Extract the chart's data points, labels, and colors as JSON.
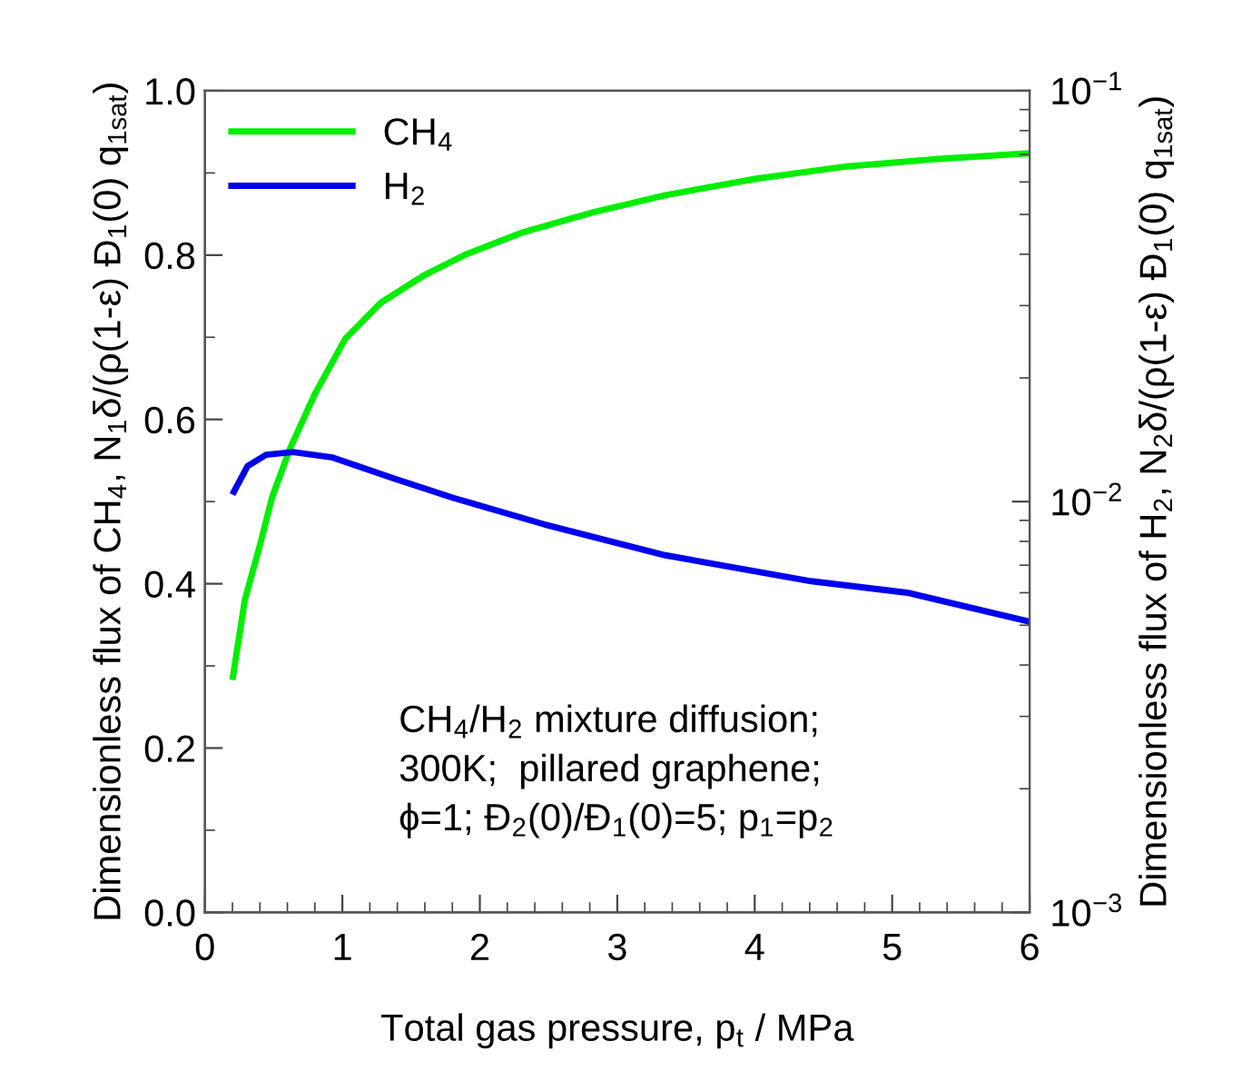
{
  "chart_data": {
    "type": "line",
    "xlabel": "Total gas pressure, p$_{t}$ / MPa",
    "ylabel": "Dimensionless flux of CH$_{4}$, N$_{1}$δ/(ρ(1-ε) Đ$_{1}$(0) q$_{1sat}$)",
    "y2label": "Dimensionless flux of H$_{2}$, N$_{2}$δ/(ρ(1-ε) Đ$_{1}$(0) q$_{1sat}$)",
    "xlim": [
      0,
      6
    ],
    "xticks": [
      0,
      1,
      2,
      3,
      4,
      5,
      6
    ],
    "ylim": [
      0,
      1
    ],
    "yticks": [
      {
        "value": 0,
        "label": "0.0"
      },
      0.2,
      0.4,
      0.6,
      0.8,
      {
        "value": 1,
        "label": "1.0"
      }
    ],
    "y2lim": [
      0.001,
      0.1
    ],
    "y2ticks": [
      {
        "value": 0.001,
        "label": "10$^{−3}$"
      },
      {
        "value": 0.01,
        "label": "10$^{−2}$"
      },
      {
        "value": 0.1,
        "label": "10$^{−1}$"
      }
    ],
    "log": "y2",
    "grid": false,
    "legend": "top left",
    "marker": "none",
    "line_style": "solid",
    "annotations": [
      "CH$_{4}$/H$_{2}$ mixture diffusion;\n300K;  pillared graphene;\nϕ=1; Đ$_{2}$(0)/Đ$_{1}$(0)=5; p$_{1}$=p$_{2}$"
    ],
    "series": [
      {
        "name": "CH$_{4}$",
        "color": "#00ee00",
        "x": [
          0.2,
          0.29,
          0.4,
          0.49,
          0.62,
          0.8,
          1.02,
          1.28,
          1.59,
          1.9,
          2.3,
          2.82,
          3.35,
          4.01,
          4.67,
          5.33,
          6.0
        ],
        "values": [
          0.283,
          0.38,
          0.447,
          0.506,
          0.565,
          0.631,
          0.698,
          0.742,
          0.775,
          0.801,
          0.827,
          0.852,
          0.873,
          0.893,
          0.908,
          0.917,
          0.924
        ]
      },
      {
        "name": "H$_{2}$",
        "color": "#0000ee",
        "axis": "y2",
        "x": [
          0.2,
          0.31,
          0.445,
          0.64,
          0.93,
          1.37,
          1.81,
          2.47,
          3.35,
          4.41,
          5.11,
          6.0
        ],
        "values": [
          0.0104,
          0.0122,
          0.013,
          0.0132,
          0.0128,
          0.0114,
          0.0102,
          0.0088,
          0.0074,
          0.0064,
          0.006,
          0.0051
        ]
      }
    ]
  }
}
